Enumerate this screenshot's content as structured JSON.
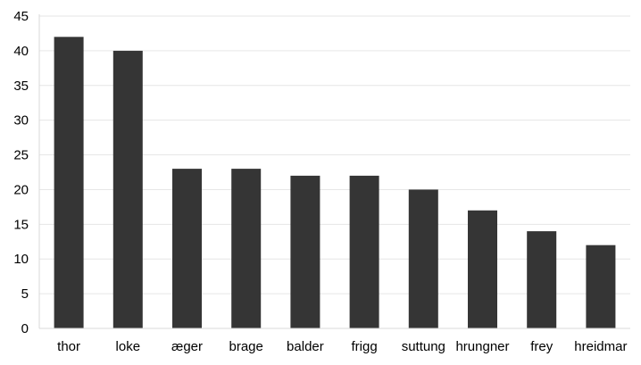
{
  "chart_data": {
    "type": "bar",
    "title": "",
    "xlabel": "",
    "ylabel": "",
    "categories": [
      "thor",
      "loke",
      "æger",
      "brage",
      "balder",
      "frigg",
      "suttung",
      "hrungner",
      "frey",
      "hreidmar"
    ],
    "values": [
      42,
      40,
      23,
      23,
      22,
      22,
      20,
      17,
      14,
      12
    ],
    "ylim": [
      0,
      45
    ],
    "yticks": [
      0,
      5,
      10,
      15,
      20,
      25,
      30,
      35,
      40,
      45
    ],
    "grid": true,
    "legend": "none",
    "colors": {
      "bar": "#353535",
      "grid": "#e6e6e6",
      "axis": "#d9d9d9",
      "text": "#000000"
    }
  }
}
